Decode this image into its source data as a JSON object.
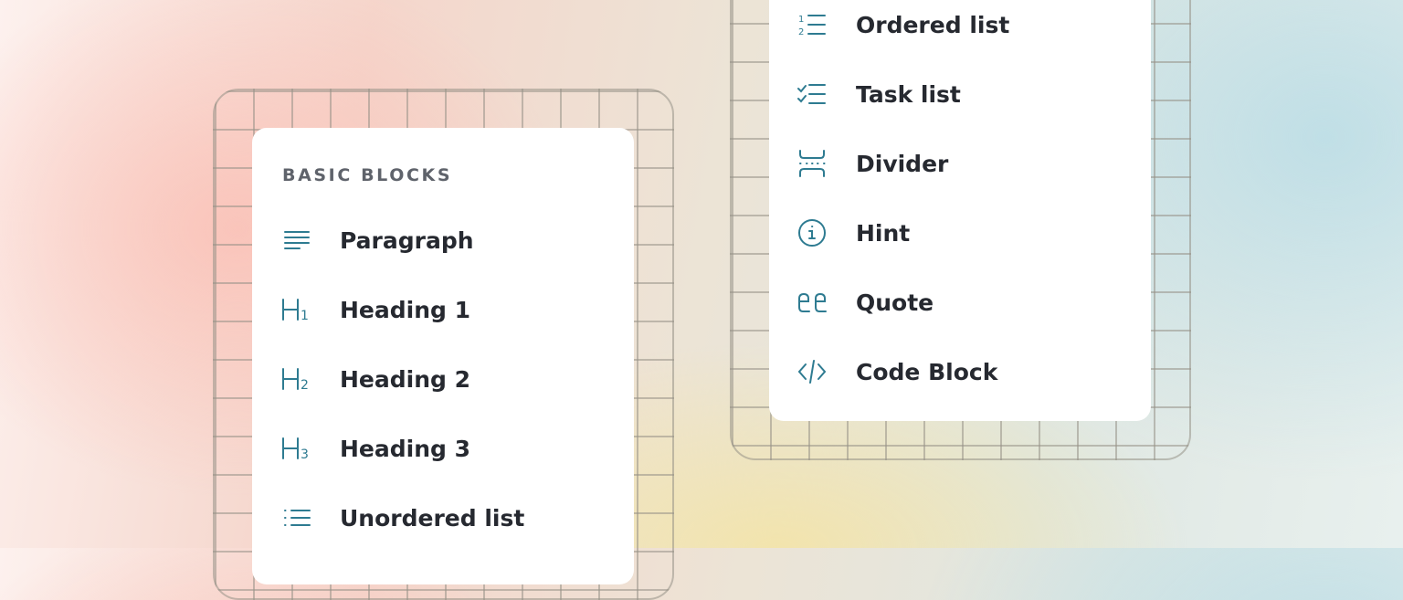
{
  "left_menu": {
    "heading": "BASIC BLOCKS",
    "items": [
      {
        "label": "Paragraph",
        "icon": "paragraph-icon"
      },
      {
        "label": "Heading 1",
        "icon": "heading-1-icon"
      },
      {
        "label": "Heading 2",
        "icon": "heading-2-icon"
      },
      {
        "label": "Heading 3",
        "icon": "heading-3-icon"
      },
      {
        "label": "Unordered list",
        "icon": "unordered-list-icon"
      }
    ]
  },
  "right_menu": {
    "items": [
      {
        "label": "Ordered list",
        "icon": "ordered-list-icon"
      },
      {
        "label": "Task list",
        "icon": "task-list-icon"
      },
      {
        "label": "Divider",
        "icon": "divider-icon"
      },
      {
        "label": "Hint",
        "icon": "hint-icon"
      },
      {
        "label": "Quote",
        "icon": "quote-icon"
      },
      {
        "label": "Code Block",
        "icon": "code-block-icon"
      }
    ]
  },
  "colors": {
    "icon": "#2e7b91",
    "text": "#262930",
    "heading": "#5f636b"
  }
}
